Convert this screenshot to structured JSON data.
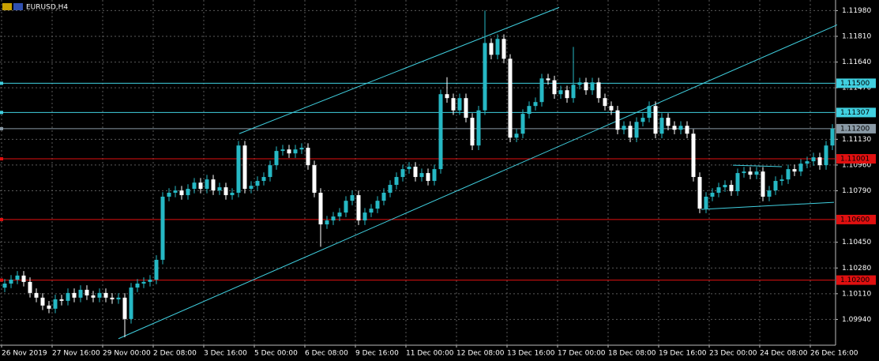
{
  "chart_data": {
    "type": "candlestick",
    "title": "EURUSD,H4",
    "categories": [
      "26 Nov 2019",
      null,
      null,
      null,
      null,
      null,
      null,
      null,
      "27 Nov 16:00",
      null,
      null,
      null,
      null,
      null,
      null,
      null,
      "29 Nov 00:00",
      null,
      null,
      null,
      null,
      null,
      null,
      null,
      "2 Dec 08:00",
      null,
      null,
      null,
      null,
      null,
      null,
      null,
      "3 Dec 16:00",
      null,
      null,
      null,
      null,
      null,
      null,
      null,
      "5 Dec 00:00",
      null,
      null,
      null,
      null,
      null,
      null,
      null,
      "6 Dec 08:00",
      null,
      null,
      null,
      null,
      null,
      null,
      null,
      "9 Dec 16:00",
      null,
      null,
      null,
      null,
      null,
      null,
      null,
      "11 Dec 00:00",
      null,
      null,
      null,
      null,
      null,
      null,
      null,
      "12 Dec 08:00",
      null,
      null,
      null,
      null,
      null,
      null,
      null,
      "13 Dec 16:00",
      null,
      null,
      null,
      null,
      null,
      null,
      null,
      "17 Dec 00:00",
      null,
      null,
      null,
      null,
      null,
      null,
      null,
      "18 Dec 08:00",
      null,
      null,
      null,
      null,
      null,
      null,
      null,
      "19 Dec 16:00",
      null,
      null,
      null,
      null,
      null,
      null,
      null,
      "23 Dec 00:00",
      null,
      null,
      null,
      null,
      null,
      null,
      null,
      "24 Dec 08:00",
      null,
      null,
      null,
      null,
      null,
      null,
      null,
      "26 Dec 16:00",
      null,
      null,
      null
    ],
    "open": [
      1.1015,
      1.10177,
      1.10203,
      1.1023,
      1.10188,
      1.10115,
      1.10084,
      1.10032,
      1.10011,
      1.10073,
      1.10063,
      1.10115,
      1.10084,
      1.10136,
      1.10099,
      1.10084,
      1.10115,
      1.10084,
      1.10073,
      1.10084,
      1.09943,
      1.10151,
      1.10177,
      1.10188,
      1.10203,
      1.10334,
      1.10751,
      1.10777,
      1.10792,
      1.10761,
      1.10803,
      1.10844,
      1.10803,
      1.10865,
      1.10792,
      1.10813,
      1.10761,
      1.10777,
      1.11089,
      1.10803,
      1.10823,
      1.10855,
      1.10881,
      1.10959,
      1.11053,
      1.11063,
      1.11037,
      1.11063,
      1.11074,
      1.10959,
      1.10777,
      1.10568,
      1.10594,
      1.1062,
      1.10646,
      1.10724,
      1.10761,
      1.10594,
      1.10646,
      1.10672,
      1.10724,
      1.10777,
      1.10829,
      1.10881,
      1.10933,
      1.10949,
      1.10881,
      1.10907,
      1.10855,
      1.10933,
      1.11428,
      1.11402,
      1.11321,
      1.11402,
      1.11272,
      1.11089,
      1.11321,
      1.11766,
      1.11688,
      1.11793,
      1.11662,
      1.11141,
      1.11167,
      1.11298,
      1.1135,
      1.11376,
      1.11532,
      1.1152,
      1.11428,
      1.11454,
      1.11402,
      1.1149,
      1.11506,
      1.11454,
      1.11506,
      1.11402,
      1.1135,
      1.11321,
      1.11193,
      1.11219,
      1.11141,
      1.11245,
      1.11272,
      1.1135,
      1.11167,
      1.11272,
      1.11219,
      1.11193,
      1.11219,
      1.11167,
      1.10881,
      1.10672,
      1.10751,
      1.10777,
      1.10813,
      1.10829,
      1.10787,
      1.10907,
      1.10917,
      1.10896,
      1.10917,
      1.10751,
      1.10792,
      1.10855,
      1.10865,
      1.10933,
      1.10917,
      1.10969,
      1.10985,
      1.11011,
      1.10959,
      1.11089
    ],
    "high": [
      1.10207,
      1.10233,
      1.1026,
      1.1026,
      1.10218,
      1.10145,
      1.10114,
      1.10062,
      1.10103,
      1.10103,
      1.10145,
      1.10145,
      1.10166,
      1.10166,
      1.10129,
      1.10145,
      1.10145,
      1.10114,
      1.10114,
      1.10114,
      1.10181,
      1.10207,
      1.10218,
      1.10233,
      1.10364,
      1.10781,
      1.10807,
      1.10822,
      1.10822,
      1.10833,
      1.10874,
      1.10874,
      1.10895,
      1.10895,
      1.10843,
      1.10843,
      1.10807,
      1.11119,
      1.11119,
      1.10853,
      1.10885,
      1.10911,
      1.10989,
      1.11083,
      1.11093,
      1.11093,
      1.11093,
      1.11104,
      1.11104,
      1.10989,
      1.10807,
      1.10624,
      1.1065,
      1.10676,
      1.10754,
      1.10791,
      1.10791,
      1.10676,
      1.10702,
      1.10754,
      1.10807,
      1.10859,
      1.10911,
      1.10963,
      1.10979,
      1.10979,
      1.10937,
      1.10937,
      1.10963,
      1.11458,
      1.1154,
      1.11432,
      1.11432,
      1.11432,
      1.11302,
      1.11351,
      1.1198,
      1.11796,
      1.11823,
      1.11823,
      1.11692,
      1.11197,
      1.11328,
      1.1138,
      1.11406,
      1.11562,
      1.11562,
      1.1155,
      1.11484,
      1.11484,
      1.1174,
      1.11536,
      1.11536,
      1.11536,
      1.11536,
      1.11432,
      1.1138,
      1.11351,
      1.11249,
      1.11249,
      1.11275,
      1.11302,
      1.1138,
      1.1138,
      1.11302,
      1.11302,
      1.11249,
      1.11249,
      1.11249,
      1.11197,
      1.10911,
      1.10781,
      1.10807,
      1.10843,
      1.10859,
      1.10859,
      1.10937,
      1.10947,
      1.10947,
      1.10947,
      1.10947,
      1.10822,
      1.10885,
      1.10895,
      1.10963,
      1.10963,
      1.10999,
      1.11015,
      1.11041,
      1.11041,
      1.11119,
      1.1123
    ],
    "low": [
      1.1012,
      1.10147,
      1.10173,
      1.10158,
      1.10085,
      1.10054,
      1.10002,
      1.09981,
      1.09981,
      1.10033,
      1.10033,
      1.10054,
      1.10054,
      1.10069,
      1.10054,
      1.10054,
      1.10054,
      1.10043,
      1.10043,
      1.09823,
      1.09913,
      1.10121,
      1.10147,
      1.10158,
      1.10173,
      1.10304,
      1.10721,
      1.10747,
      1.10731,
      1.10731,
      1.10773,
      1.10773,
      1.10773,
      1.10762,
      1.10762,
      1.10731,
      1.10731,
      1.10747,
      1.10773,
      1.10773,
      1.10793,
      1.10825,
      1.10851,
      1.10929,
      1.11023,
      1.11007,
      1.11007,
      1.11033,
      1.10929,
      1.10747,
      1.1042,
      1.10538,
      1.10564,
      1.1059,
      1.10616,
      1.10694,
      1.10564,
      1.10564,
      1.10616,
      1.10642,
      1.10694,
      1.10747,
      1.10799,
      1.10851,
      1.10903,
      1.10851,
      1.10851,
      1.10825,
      1.10825,
      1.10903,
      1.11372,
      1.11291,
      1.11291,
      1.11242,
      1.11059,
      1.11059,
      1.11291,
      1.11658,
      1.11658,
      1.11632,
      1.11111,
      1.11111,
      1.11137,
      1.11268,
      1.1132,
      1.11346,
      1.1149,
      1.11398,
      1.11398,
      1.11372,
      1.11372,
      1.1146,
      1.11424,
      1.11424,
      1.11372,
      1.1132,
      1.11291,
      1.11163,
      1.11163,
      1.11111,
      1.11111,
      1.11215,
      1.11242,
      1.11137,
      1.11137,
      1.11189,
      1.11163,
      1.11163,
      1.11137,
      1.10851,
      1.10642,
      1.10642,
      1.10721,
      1.10747,
      1.10783,
      1.10757,
      1.10757,
      1.10877,
      1.10866,
      1.10866,
      1.10721,
      1.10721,
      1.10762,
      1.10825,
      1.10835,
      1.10887,
      1.10887,
      1.10939,
      1.10955,
      1.10929,
      1.10929,
      1.11059
    ],
    "close": [
      1.10177,
      1.10203,
      1.1023,
      1.10188,
      1.10115,
      1.10084,
      1.10032,
      1.10011,
      1.10073,
      1.10063,
      1.10115,
      1.10084,
      1.10136,
      1.10099,
      1.10084,
      1.10115,
      1.10084,
      1.10073,
      1.10084,
      1.09943,
      1.10151,
      1.10177,
      1.10188,
      1.10203,
      1.10334,
      1.10751,
      1.10777,
      1.10792,
      1.10761,
      1.10803,
      1.10844,
      1.10803,
      1.10865,
      1.10792,
      1.10813,
      1.10761,
      1.10777,
      1.11089,
      1.10803,
      1.10823,
      1.10855,
      1.10881,
      1.10959,
      1.11053,
      1.11063,
      1.11037,
      1.11063,
      1.11074,
      1.10959,
      1.10777,
      1.10568,
      1.10594,
      1.1062,
      1.10646,
      1.10724,
      1.10761,
      1.10594,
      1.10646,
      1.10672,
      1.10724,
      1.10777,
      1.10829,
      1.10881,
      1.10933,
      1.10949,
      1.10881,
      1.10907,
      1.10855,
      1.10933,
      1.11428,
      1.11402,
      1.11321,
      1.11402,
      1.11272,
      1.11089,
      1.11321,
      1.11766,
      1.11688,
      1.11793,
      1.11662,
      1.11141,
      1.11167,
      1.11298,
      1.1135,
      1.11376,
      1.11532,
      1.1152,
      1.11428,
      1.11454,
      1.11402,
      1.1149,
      1.11506,
      1.11454,
      1.11506,
      1.11402,
      1.1135,
      1.11321,
      1.11193,
      1.11219,
      1.11141,
      1.11245,
      1.11272,
      1.1135,
      1.11167,
      1.11272,
      1.11219,
      1.11193,
      1.11219,
      1.11167,
      1.10881,
      1.10672,
      1.10751,
      1.10777,
      1.10813,
      1.10829,
      1.10787,
      1.10907,
      1.10917,
      1.10896,
      1.10917,
      1.10751,
      1.10792,
      1.10855,
      1.10865,
      1.10933,
      1.10917,
      1.10969,
      1.10985,
      1.11011,
      1.10959,
      1.11089,
      1.112
    ],
    "colors": {
      "bull": "#26b8c4",
      "bear": "#ffffff"
    },
    "ylim": [
      1.0977,
      1.1205
    ],
    "yticks": [
      {
        "value": 1.1198,
        "label": "1.11980"
      },
      {
        "value": 1.1181,
        "label": "1.11810"
      },
      {
        "value": 1.1164,
        "label": "1.11640"
      },
      {
        "value": 1.1147,
        "label": "1.11470"
      },
      {
        "value": 1.1113,
        "label": "1.11130"
      },
      {
        "value": 1.1096,
        "label": "1.10960"
      },
      {
        "value": 1.1079,
        "label": "1.10790"
      },
      {
        "value": 1.1045,
        "label": "1.10450"
      },
      {
        "value": 1.1028,
        "label": "1.10280"
      },
      {
        "value": 1.1011,
        "label": "1.10110"
      },
      {
        "value": 1.0994,
        "label": "1.09940"
      }
    ],
    "grid": true,
    "hlines": [
      {
        "value": 1.115,
        "label": "1.11500",
        "color": "#40d0e0"
      },
      {
        "value": 1.11307,
        "label": "1.11307",
        "color": "#40d0e0"
      },
      {
        "value": 1.112,
        "label": "1.11200",
        "color": "#8a9aa6"
      },
      {
        "value": 1.11001,
        "label": "1.11001",
        "color": "#e01010"
      },
      {
        "value": 1.106,
        "label": "1.10600",
        "color": "#e01010"
      },
      {
        "value": 1.102,
        "label": "1.10200",
        "color": "#e01010"
      }
    ],
    "trendlines": [
      {
        "x1": 37.1,
        "y1": 1.11167,
        "x2": 87.75,
        "y2": 1.12001,
        "color": "#40d0e0"
      },
      {
        "x1": 18,
        "y1": 1.09813,
        "x2": 131.75,
        "y2": 1.11886,
        "color": "#40d0e0"
      },
      {
        "x1": 115.25,
        "y1": 1.10959,
        "x2": 123,
        "y2": 1.10949,
        "color": "#40d0e0"
      },
      {
        "x1": 110.25,
        "y1": 1.10667,
        "x2": 131.25,
        "y2": 1.10714,
        "color": "#40d0e0"
      }
    ]
  }
}
